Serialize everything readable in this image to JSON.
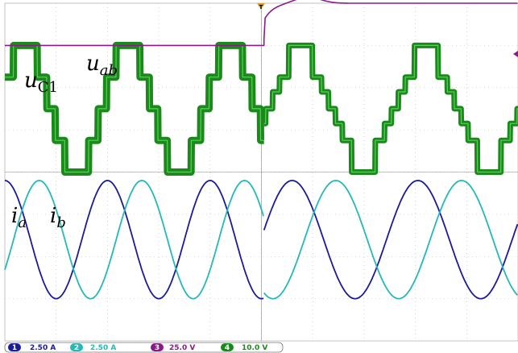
{
  "chart_data": {
    "type": "line",
    "title": "",
    "xlabel": "",
    "ylabel": "",
    "grid": true,
    "divisions": {
      "x": 10,
      "y": 8
    },
    "trigger_marker": "T",
    "annotations": [
      {
        "text": "u",
        "sub": "C1",
        "series": "ch3"
      },
      {
        "text": "u",
        "sub": "ab",
        "series": "ch4"
      },
      {
        "text": "i",
        "sub": "a",
        "series": "ch1"
      },
      {
        "text": "i",
        "sub": "b",
        "series": "ch2"
      }
    ],
    "channels": [
      {
        "id": "1",
        "label": "2.50 A",
        "color": "#1a1a9a"
      },
      {
        "id": "2",
        "label": "2.50 A",
        "color": "#25b8b8"
      },
      {
        "id": "3",
        "label": "25.0 V",
        "color": "#8a1a8a"
      },
      {
        "id": "4",
        "label": "10.0 V",
        "color": "#1a8a1a"
      }
    ],
    "event_x_div": 5.05,
    "uC1_div": {
      "before": 1.0,
      "after": 0.0,
      "overshoot": -0.15
    },
    "uab_div": {
      "center": 2.7,
      "levels_before": [
        1.0,
        1.75,
        2.5,
        3.25,
        4.0
      ],
      "levels_after": [
        1.0,
        1.75,
        2.1,
        2.5,
        2.85,
        3.25,
        4.0
      ]
    },
    "currents_div": {
      "center": 5.6,
      "amplitude": 1.4,
      "period_before": 2.0,
      "period_after": 2.45
    }
  }
}
